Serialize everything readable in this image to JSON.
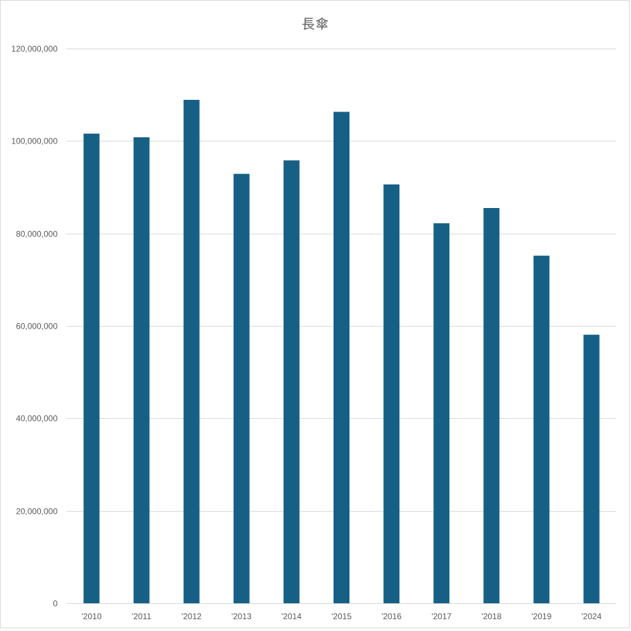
{
  "chart_data": {
    "type": "bar",
    "title": "長傘",
    "categories": [
      "'2010",
      "'2011",
      "'2012",
      "'2013",
      "'2014",
      "'2015",
      "'2016",
      "'2017",
      "'2018",
      "'2019",
      "'2024"
    ],
    "series": [
      {
        "values": [
          101600000,
          100800000,
          108900000,
          92900000,
          95800000,
          106300000,
          90600000,
          82200000,
          85500000,
          75200000,
          58100000
        ]
      }
    ],
    "ylim": [
      0,
      120000000
    ],
    "yticks": [
      0,
      20000000,
      40000000,
      60000000,
      80000000,
      100000000,
      120000000
    ],
    "ytick_labels": [
      "0",
      "20,000,000",
      "40,000,000",
      "60,000,000",
      "80,000,000",
      "100,000,000",
      "120,000,000"
    ],
    "grid": true,
    "legend": "none",
    "colors": {
      "bar": "#176085",
      "grid": "#d9d9d9",
      "text": "#595959"
    }
  }
}
